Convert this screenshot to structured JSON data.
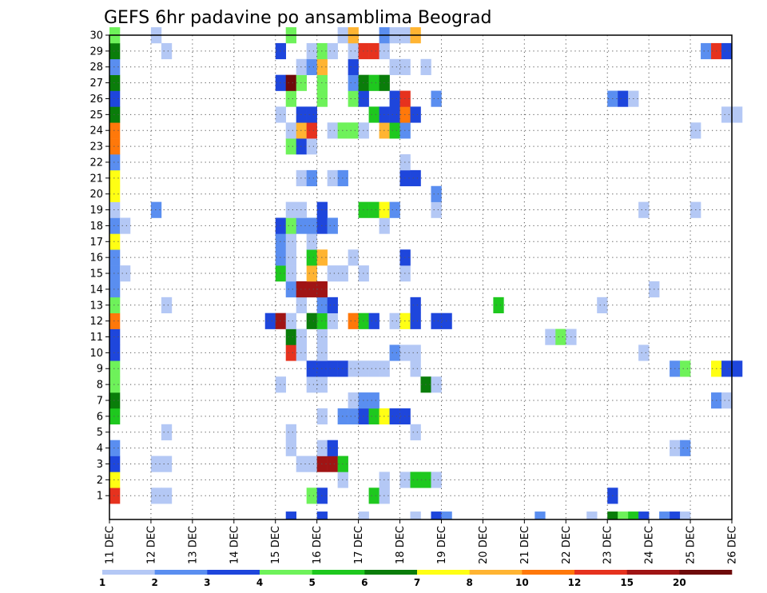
{
  "chart_data": {
    "type": "heatmap",
    "title": "GEFS 6hr padavine po ansamblima Beograd",
    "xlabel": "",
    "ylabel": "",
    "x_ticks": [
      "11 DEC",
      "12 DEC",
      "13 DEC",
      "14 DEC",
      "15 DEC",
      "16 DEC",
      "17 DEC",
      "18 DEC",
      "19 DEC",
      "20 DEC",
      "21 DEC",
      "22 DEC",
      "23 DEC",
      "24 DEC",
      "25 DEC",
      "26 DEC"
    ],
    "y_ticks": [
      "1",
      "2",
      "3",
      "4",
      "5",
      "6",
      "7",
      "8",
      "9",
      "10",
      "11",
      "12",
      "13",
      "14",
      "15",
      "16",
      "17",
      "18",
      "19",
      "20",
      "21",
      "22",
      "23",
      "24",
      "25",
      "26",
      "27",
      "28",
      "29",
      "30"
    ],
    "x_range_days": [
      0,
      15
    ],
    "y_range_members": [
      0,
      30
    ],
    "cell_width_days": 0.25,
    "grid": true,
    "colorbar": {
      "labels": [
        "1",
        "2",
        "3",
        "4",
        "5",
        "6",
        "7",
        "8",
        "10",
        "12",
        "15",
        "20"
      ],
      "colors": [
        "#b4c8f5",
        "#5a8ef0",
        "#1e46dc",
        "#6ef25a",
        "#1ec81e",
        "#0a7d0a",
        "#ffff14",
        "#ffb432",
        "#ff780a",
        "#e6321e",
        "#a01414",
        "#6e0a0a"
      ]
    },
    "cells": [
      {
        "d": 0,
        "m": 1,
        "c": 10
      },
      {
        "d": 0,
        "m": 2,
        "c": 7
      },
      {
        "d": 0,
        "m": 3,
        "c": 3
      },
      {
        "d": 0,
        "m": 4,
        "c": 2
      },
      {
        "d": 0,
        "m": 6,
        "c": 5
      },
      {
        "d": 0,
        "m": 7,
        "c": 6
      },
      {
        "d": 0,
        "m": 8,
        "c": 4
      },
      {
        "d": 0,
        "m": 9,
        "c": 4
      },
      {
        "d": 0,
        "m": 10,
        "c": 3
      },
      {
        "d": 0,
        "m": 11,
        "c": 3
      },
      {
        "d": 0,
        "m": 12,
        "c": 9
      },
      {
        "d": 0,
        "m": 13,
        "c": 4
      },
      {
        "d": 0,
        "m": 14,
        "c": 2
      },
      {
        "d": 0,
        "m": 15,
        "c": 2
      },
      {
        "d": 0,
        "m": 16,
        "c": 2
      },
      {
        "d": 0,
        "m": 17,
        "c": 7
      },
      {
        "d": 0,
        "m": 18,
        "c": 2
      },
      {
        "d": 0,
        "m": 19,
        "c": 1
      },
      {
        "d": 0,
        "m": 20,
        "c": 7
      },
      {
        "d": 0,
        "m": 21,
        "c": 7
      },
      {
        "d": 0,
        "m": 22,
        "c": 2
      },
      {
        "d": 0,
        "m": 23,
        "c": 9
      },
      {
        "d": 0,
        "m": 24,
        "c": 9
      },
      {
        "d": 0,
        "m": 25,
        "c": 6
      },
      {
        "d": 0,
        "m": 26,
        "c": 3
      },
      {
        "d": 0,
        "m": 27,
        "c": 6
      },
      {
        "d": 0,
        "m": 28,
        "c": 2
      },
      {
        "d": 0,
        "m": 29,
        "c": 6
      },
      {
        "d": 0,
        "m": 30,
        "c": 4
      },
      {
        "d": 0.25,
        "m": 15,
        "c": 1
      },
      {
        "d": 0.25,
        "m": 18,
        "c": 1
      },
      {
        "d": 1,
        "m": 1,
        "c": 1
      },
      {
        "d": 1.25,
        "m": 1,
        "c": 1
      },
      {
        "d": 1,
        "m": 3,
        "c": 1
      },
      {
        "d": 1.25,
        "m": 3,
        "c": 1
      },
      {
        "d": 1,
        "m": 19,
        "c": 2
      },
      {
        "d": 1,
        "m": 30,
        "c": 1
      },
      {
        "d": 1.25,
        "m": 5,
        "c": 1
      },
      {
        "d": 1.25,
        "m": 13,
        "c": 1
      },
      {
        "d": 1.25,
        "m": 29,
        "c": 1
      },
      {
        "d": 3.75,
        "m": 12,
        "c": 3
      },
      {
        "d": 4,
        "m": 8,
        "c": 1
      },
      {
        "d": 4,
        "m": 12,
        "c": 11
      },
      {
        "d": 4,
        "m": 15,
        "c": 5
      },
      {
        "d": 4,
        "m": 16,
        "c": 2
      },
      {
        "d": 4,
        "m": 17,
        "c": 2
      },
      {
        "d": 4,
        "m": 18,
        "c": 3
      },
      {
        "d": 4,
        "m": 25,
        "c": 1
      },
      {
        "d": 4,
        "m": 27,
        "c": 3
      },
      {
        "d": 4,
        "m": 29,
        "c": 3
      },
      {
        "d": 4.25,
        "m": 0,
        "c": 3
      },
      {
        "d": 4.25,
        "m": 4,
        "c": 1
      },
      {
        "d": 4.25,
        "m": 5,
        "c": 1
      },
      {
        "d": 4.25,
        "m": 10,
        "c": 10
      },
      {
        "d": 4.25,
        "m": 11,
        "c": 6
      },
      {
        "d": 4.25,
        "m": 12,
        "c": 1
      },
      {
        "d": 4.25,
        "m": 14,
        "c": 2
      },
      {
        "d": 4.25,
        "m": 15,
        "c": 1
      },
      {
        "d": 4.25,
        "m": 16,
        "c": 1
      },
      {
        "d": 4.25,
        "m": 17,
        "c": 1
      },
      {
        "d": 4.25,
        "m": 18,
        "c": 4
      },
      {
        "d": 4.25,
        "m": 19,
        "c": 1
      },
      {
        "d": 4.25,
        "m": 23,
        "c": 4
      },
      {
        "d": 4.25,
        "m": 24,
        "c": 1
      },
      {
        "d": 4.25,
        "m": 26,
        "c": 4
      },
      {
        "d": 4.25,
        "m": 27,
        "c": 12
      },
      {
        "d": 4.25,
        "m": 30,
        "c": 4
      },
      {
        "d": 4.5,
        "m": 3,
        "c": 1
      },
      {
        "d": 4.5,
        "m": 10,
        "c": 1
      },
      {
        "d": 4.5,
        "m": 11,
        "c": 1
      },
      {
        "d": 4.5,
        "m": 13,
        "c": 1
      },
      {
        "d": 4.5,
        "m": 14,
        "c": 11
      },
      {
        "d": 4.5,
        "m": 18,
        "c": 2
      },
      {
        "d": 4.5,
        "m": 19,
        "c": 1
      },
      {
        "d": 4.5,
        "m": 21,
        "c": 1
      },
      {
        "d": 4.5,
        "m": 23,
        "c": 3
      },
      {
        "d": 4.5,
        "m": 24,
        "c": 8
      },
      {
        "d": 4.5,
        "m": 25,
        "c": 3
      },
      {
        "d": 4.5,
        "m": 27,
        "c": 4
      },
      {
        "d": 4.5,
        "m": 28,
        "c": 1
      },
      {
        "d": 4.75,
        "m": 1,
        "c": 4
      },
      {
        "d": 4.75,
        "m": 3,
        "c": 1
      },
      {
        "d": 4.75,
        "m": 8,
        "c": 1
      },
      {
        "d": 4.75,
        "m": 9,
        "c": 3
      },
      {
        "d": 4.75,
        "m": 12,
        "c": 6
      },
      {
        "d": 4.75,
        "m": 14,
        "c": 11
      },
      {
        "d": 4.75,
        "m": 15,
        "c": 8
      },
      {
        "d": 4.75,
        "m": 16,
        "c": 5
      },
      {
        "d": 4.75,
        "m": 17,
        "c": 1
      },
      {
        "d": 4.75,
        "m": 18,
        "c": 2
      },
      {
        "d": 4.75,
        "m": 21,
        "c": 2
      },
      {
        "d": 4.75,
        "m": 23,
        "c": 1
      },
      {
        "d": 4.75,
        "m": 24,
        "c": 10
      },
      {
        "d": 4.75,
        "m": 25,
        "c": 3
      },
      {
        "d": 4.75,
        "m": 28,
        "c": 2
      },
      {
        "d": 4.75,
        "m": 29,
        "c": 1
      },
      {
        "d": 5,
        "m": 0,
        "c": 3
      },
      {
        "d": 5,
        "m": 1,
        "c": 3
      },
      {
        "d": 5,
        "m": 3,
        "c": 11
      },
      {
        "d": 5,
        "m": 4,
        "c": 1
      },
      {
        "d": 5,
        "m": 6,
        "c": 1
      },
      {
        "d": 5,
        "m": 8,
        "c": 1
      },
      {
        "d": 5,
        "m": 9,
        "c": 3
      },
      {
        "d": 5,
        "m": 10,
        "c": 1
      },
      {
        "d": 5,
        "m": 11,
        "c": 1
      },
      {
        "d": 5,
        "m": 12,
        "c": 5
      },
      {
        "d": 5,
        "m": 13,
        "c": 2
      },
      {
        "d": 5,
        "m": 14,
        "c": 11
      },
      {
        "d": 5,
        "m": 16,
        "c": 8
      },
      {
        "d": 5,
        "m": 18,
        "c": 3
      },
      {
        "d": 5,
        "m": 19,
        "c": 3
      },
      {
        "d": 5,
        "m": 26,
        "c": 4
      },
      {
        "d": 5,
        "m": 27,
        "c": 4
      },
      {
        "d": 5,
        "m": 28,
        "c": 8
      },
      {
        "d": 5,
        "m": 29,
        "c": 4
      },
      {
        "d": 5.25,
        "m": 3,
        "c": 11
      },
      {
        "d": 5.25,
        "m": 4,
        "c": 3
      },
      {
        "d": 5.25,
        "m": 9,
        "c": 3
      },
      {
        "d": 5.25,
        "m": 12,
        "c": 1
      },
      {
        "d": 5.25,
        "m": 13,
        "c": 3
      },
      {
        "d": 5.25,
        "m": 15,
        "c": 1
      },
      {
        "d": 5.25,
        "m": 18,
        "c": 2
      },
      {
        "d": 5.25,
        "m": 21,
        "c": 1
      },
      {
        "d": 5.25,
        "m": 24,
        "c": 1
      },
      {
        "d": 5.25,
        "m": 29,
        "c": 1
      },
      {
        "d": 5.5,
        "m": 2,
        "c": 1
      },
      {
        "d": 5.5,
        "m": 3,
        "c": 5
      },
      {
        "d": 5.5,
        "m": 6,
        "c": 2
      },
      {
        "d": 5.5,
        "m": 9,
        "c": 3
      },
      {
        "d": 5.5,
        "m": 15,
        "c": 1
      },
      {
        "d": 5.5,
        "m": 21,
        "c": 2
      },
      {
        "d": 5.5,
        "m": 24,
        "c": 4
      },
      {
        "d": 5.5,
        "m": 30,
        "c": 1
      },
      {
        "d": 5.75,
        "m": 6,
        "c": 2
      },
      {
        "d": 5.75,
        "m": 7,
        "c": 1
      },
      {
        "d": 5.75,
        "m": 9,
        "c": 1
      },
      {
        "d": 5.75,
        "m": 12,
        "c": 9
      },
      {
        "d": 5.75,
        "m": 16,
        "c": 1
      },
      {
        "d": 5.75,
        "m": 24,
        "c": 4
      },
      {
        "d": 5.75,
        "m": 26,
        "c": 4
      },
      {
        "d": 5.75,
        "m": 27,
        "c": 2
      },
      {
        "d": 5.75,
        "m": 28,
        "c": 3
      },
      {
        "d": 5.75,
        "m": 29,
        "c": 1
      },
      {
        "d": 5.75,
        "m": 30,
        "c": 8
      },
      {
        "d": 6,
        "m": 0,
        "c": 1
      },
      {
        "d": 6,
        "m": 6,
        "c": 3
      },
      {
        "d": 6,
        "m": 7,
        "c": 2
      },
      {
        "d": 6,
        "m": 9,
        "c": 1
      },
      {
        "d": 6,
        "m": 12,
        "c": 5
      },
      {
        "d": 6,
        "m": 15,
        "c": 1
      },
      {
        "d": 6,
        "m": 19,
        "c": 5
      },
      {
        "d": 6,
        "m": 24,
        "c": 1
      },
      {
        "d": 6,
        "m": 26,
        "c": 3
      },
      {
        "d": 6,
        "m": 27,
        "c": 6
      },
      {
        "d": 6,
        "m": 29,
        "c": 10
      },
      {
        "d": 6.25,
        "m": 1,
        "c": 5
      },
      {
        "d": 6.25,
        "m": 6,
        "c": 5
      },
      {
        "d": 6.25,
        "m": 7,
        "c": 2
      },
      {
        "d": 6.25,
        "m": 9,
        "c": 1
      },
      {
        "d": 6.25,
        "m": 12,
        "c": 3
      },
      {
        "d": 6.25,
        "m": 19,
        "c": 5
      },
      {
        "d": 6.25,
        "m": 25,
        "c": 5
      },
      {
        "d": 6.25,
        "m": 27,
        "c": 5
      },
      {
        "d": 6.25,
        "m": 29,
        "c": 10
      },
      {
        "d": 6.5,
        "m": 1,
        "c": 1
      },
      {
        "d": 6.5,
        "m": 2,
        "c": 1
      },
      {
        "d": 6.5,
        "m": 6,
        "c": 7
      },
      {
        "d": 6.5,
        "m": 9,
        "c": 1
      },
      {
        "d": 6.5,
        "m": 18,
        "c": 1
      },
      {
        "d": 6.5,
        "m": 19,
        "c": 7
      },
      {
        "d": 6.5,
        "m": 24,
        "c": 8
      },
      {
        "d": 6.5,
        "m": 25,
        "c": 3
      },
      {
        "d": 6.5,
        "m": 27,
        "c": 6
      },
      {
        "d": 6.5,
        "m": 29,
        "c": 1
      },
      {
        "d": 6.5,
        "m": 30,
        "c": 2
      },
      {
        "d": 6.75,
        "m": 6,
        "c": 3
      },
      {
        "d": 6.75,
        "m": 10,
        "c": 2
      },
      {
        "d": 6.75,
        "m": 12,
        "c": 1
      },
      {
        "d": 6.75,
        "m": 19,
        "c": 2
      },
      {
        "d": 6.75,
        "m": 24,
        "c": 5
      },
      {
        "d": 6.75,
        "m": 25,
        "c": 3
      },
      {
        "d": 6.75,
        "m": 26,
        "c": 3
      },
      {
        "d": 6.75,
        "m": 28,
        "c": 1
      },
      {
        "d": 6.75,
        "m": 30,
        "c": 1
      },
      {
        "d": 7,
        "m": 2,
        "c": 1
      },
      {
        "d": 7,
        "m": 6,
        "c": 3
      },
      {
        "d": 7,
        "m": 10,
        "c": 1
      },
      {
        "d": 7,
        "m": 12,
        "c": 7
      },
      {
        "d": 7,
        "m": 15,
        "c": 1
      },
      {
        "d": 7,
        "m": 16,
        "c": 3
      },
      {
        "d": 7,
        "m": 21,
        "c": 3
      },
      {
        "d": 7,
        "m": 22,
        "c": 1
      },
      {
        "d": 7,
        "m": 24,
        "c": 2
      },
      {
        "d": 7,
        "m": 25,
        "c": 9
      },
      {
        "d": 7,
        "m": 26,
        "c": 10
      },
      {
        "d": 7,
        "m": 28,
        "c": 1
      },
      {
        "d": 7,
        "m": 30,
        "c": 1
      },
      {
        "d": 7.25,
        "m": 0,
        "c": 1
      },
      {
        "d": 7.25,
        "m": 2,
        "c": 5
      },
      {
        "d": 7.25,
        "m": 5,
        "c": 1
      },
      {
        "d": 7.25,
        "m": 9,
        "c": 1
      },
      {
        "d": 7.25,
        "m": 10,
        "c": 1
      },
      {
        "d": 7.25,
        "m": 12,
        "c": 3
      },
      {
        "d": 7.25,
        "m": 13,
        "c": 3
      },
      {
        "d": 7.25,
        "m": 21,
        "c": 3
      },
      {
        "d": 7.25,
        "m": 25,
        "c": 3
      },
      {
        "d": 7.25,
        "m": 30,
        "c": 8
      },
      {
        "d": 7.5,
        "m": 2,
        "c": 5
      },
      {
        "d": 7.5,
        "m": 8,
        "c": 6
      },
      {
        "d": 7.5,
        "m": 28,
        "c": 1
      },
      {
        "d": 7.75,
        "m": 0,
        "c": 3
      },
      {
        "d": 7.75,
        "m": 2,
        "c": 1
      },
      {
        "d": 7.75,
        "m": 8,
        "c": 1
      },
      {
        "d": 7.75,
        "m": 12,
        "c": 3
      },
      {
        "d": 7.75,
        "m": 19,
        "c": 1
      },
      {
        "d": 7.75,
        "m": 20,
        "c": 2
      },
      {
        "d": 7.75,
        "m": 26,
        "c": 2
      },
      {
        "d": 8,
        "m": 0,
        "c": 2
      },
      {
        "d": 8,
        "m": 12,
        "c": 3
      },
      {
        "d": 9.25,
        "m": 13,
        "c": 5
      },
      {
        "d": 10.25,
        "m": 0,
        "c": 2
      },
      {
        "d": 10.5,
        "m": 11,
        "c": 1
      },
      {
        "d": 10.75,
        "m": 11,
        "c": 4
      },
      {
        "d": 11,
        "m": 11,
        "c": 1
      },
      {
        "d": 11.5,
        "m": 0,
        "c": 1
      },
      {
        "d": 11.75,
        "m": 13,
        "c": 1
      },
      {
        "d": 12,
        "m": 0,
        "c": 6
      },
      {
        "d": 12,
        "m": 1,
        "c": 3
      },
      {
        "d": 12,
        "m": 26,
        "c": 2
      },
      {
        "d": 12.25,
        "m": 0,
        "c": 4
      },
      {
        "d": 12.25,
        "m": 26,
        "c": 3
      },
      {
        "d": 12.5,
        "m": 0,
        "c": 5
      },
      {
        "d": 12.5,
        "m": 26,
        "c": 1
      },
      {
        "d": 12.75,
        "m": 0,
        "c": 3
      },
      {
        "d": 12.75,
        "m": 10,
        "c": 1
      },
      {
        "d": 12.75,
        "m": 19,
        "c": 1
      },
      {
        "d": 13,
        "m": 14,
        "c": 1
      },
      {
        "d": 13.25,
        "m": 0,
        "c": 2
      },
      {
        "d": 13.5,
        "m": 0,
        "c": 3
      },
      {
        "d": 13.5,
        "m": 4,
        "c": 1
      },
      {
        "d": 13.5,
        "m": 9,
        "c": 2
      },
      {
        "d": 13.75,
        "m": 0,
        "c": 1
      },
      {
        "d": 13.75,
        "m": 4,
        "c": 2
      },
      {
        "d": 13.75,
        "m": 9,
        "c": 4
      },
      {
        "d": 14,
        "m": 19,
        "c": 1
      },
      {
        "d": 14,
        "m": 24,
        "c": 1
      },
      {
        "d": 14.25,
        "m": 29,
        "c": 2
      },
      {
        "d": 14.5,
        "m": 7,
        "c": 2
      },
      {
        "d": 14.5,
        "m": 9,
        "c": 7
      },
      {
        "d": 14.5,
        "m": 29,
        "c": 10
      },
      {
        "d": 14.75,
        "m": 7,
        "c": 1
      },
      {
        "d": 14.75,
        "m": 9,
        "c": 3
      },
      {
        "d": 14.75,
        "m": 25,
        "c": 1
      },
      {
        "d": 14.75,
        "m": 29,
        "c": 3
      },
      {
        "d": 15,
        "m": 9,
        "c": 3
      },
      {
        "d": 15,
        "m": 25,
        "c": 1
      }
    ]
  }
}
